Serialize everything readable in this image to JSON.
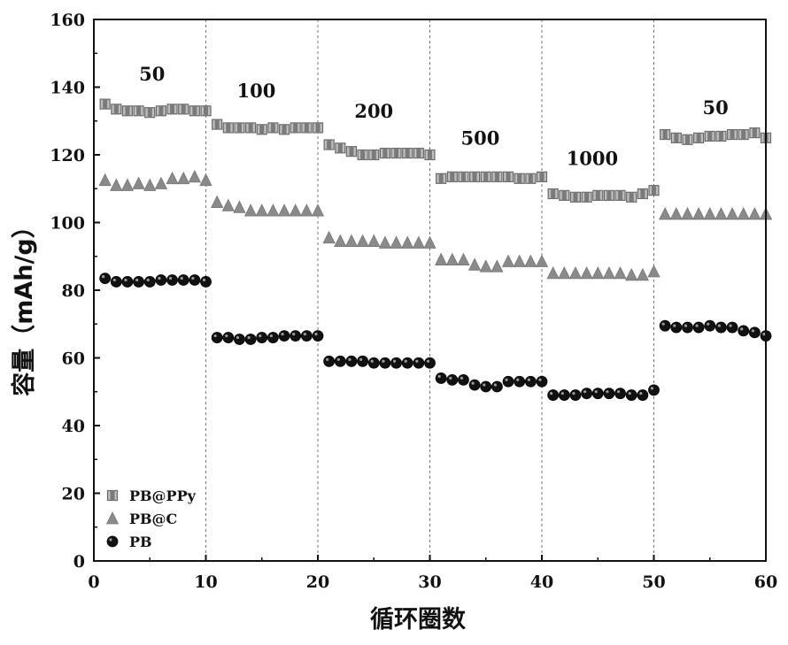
{
  "chart_data": {
    "type": "scatter",
    "xlabel": "循环圈数",
    "ylabel": "容量（mAh/g）",
    "xlim": [
      0,
      60
    ],
    "ylim": [
      0,
      160
    ],
    "xticks": [
      "0",
      "10",
      "20",
      "30",
      "40",
      "50",
      "60"
    ],
    "yticks": [
      "0",
      "20",
      "40",
      "60",
      "80",
      "100",
      "120",
      "140",
      "160"
    ],
    "segment_boundaries": [
      10,
      20,
      30,
      40,
      50
    ],
    "rate_labels": [
      {
        "text": "50",
        "x": 5.2,
        "y": 142
      },
      {
        "text": "100",
        "x": 14.5,
        "y": 137
      },
      {
        "text": "200",
        "x": 25,
        "y": 131
      },
      {
        "text": "500",
        "x": 34.5,
        "y": 123
      },
      {
        "text": "1000",
        "x": 44.5,
        "y": 117
      },
      {
        "text": "50",
        "x": 55.5,
        "y": 132
      }
    ],
    "legend_position": "bottom-left",
    "series": [
      {
        "name": "PB@PPy",
        "marker": "square",
        "color": "#8a8a8a",
        "x": [
          1,
          2,
          3,
          4,
          5,
          6,
          7,
          8,
          9,
          10,
          11,
          12,
          13,
          14,
          15,
          16,
          17,
          18,
          19,
          20,
          21,
          22,
          23,
          24,
          25,
          26,
          27,
          28,
          29,
          30,
          31,
          32,
          33,
          34,
          35,
          36,
          37,
          38,
          39,
          40,
          41,
          42,
          43,
          44,
          45,
          46,
          47,
          48,
          49,
          50,
          51,
          52,
          53,
          54,
          55,
          56,
          57,
          58,
          59,
          60
        ],
        "values": [
          135,
          133.5,
          133,
          133,
          132.5,
          133,
          133.5,
          133.5,
          133,
          133,
          129,
          128,
          128,
          128,
          127.5,
          128,
          127.5,
          128,
          128,
          128,
          123,
          122,
          121,
          120,
          120,
          120.5,
          120.5,
          120.5,
          120.5,
          120,
          113,
          113.5,
          113.5,
          113.5,
          113.5,
          113.5,
          113.5,
          113,
          113,
          113.5,
          108.5,
          108,
          107.5,
          107.5,
          108,
          108,
          108,
          107.5,
          108.5,
          109.5,
          126,
          125,
          124.5,
          125,
          125.5,
          125.5,
          126,
          126,
          126.5,
          125
        ]
      },
      {
        "name": "PB@C",
        "marker": "triangle",
        "color": "#8a8a8a",
        "x": [
          1,
          2,
          3,
          4,
          5,
          6,
          7,
          8,
          9,
          10,
          11,
          12,
          13,
          14,
          15,
          16,
          17,
          18,
          19,
          20,
          21,
          22,
          23,
          24,
          25,
          26,
          27,
          28,
          29,
          30,
          31,
          32,
          33,
          34,
          35,
          36,
          37,
          38,
          39,
          40,
          41,
          42,
          43,
          44,
          45,
          46,
          47,
          48,
          49,
          50,
          51,
          52,
          53,
          54,
          55,
          56,
          57,
          58,
          59,
          60
        ],
        "values": [
          112.5,
          111,
          111,
          111.5,
          111,
          111.5,
          113,
          113,
          113.5,
          112.5,
          106,
          105,
          104.5,
          103.5,
          103.5,
          103.5,
          103.5,
          103.5,
          103.5,
          103.5,
          95.5,
          94.5,
          94.5,
          94.5,
          94.5,
          94,
          94,
          94,
          94,
          94,
          89,
          89,
          89,
          87.5,
          87,
          87,
          88.5,
          88.5,
          88.5,
          88.5,
          85,
          85,
          85,
          85,
          85,
          85,
          85,
          84.5,
          84.5,
          85.5,
          102.5,
          102.5,
          102.5,
          102.5,
          102.5,
          102.5,
          102.5,
          102.5,
          102.5,
          102.5
        ]
      },
      {
        "name": "PB",
        "marker": "circle",
        "color": "#111111",
        "x": [
          1,
          2,
          3,
          4,
          5,
          6,
          7,
          8,
          9,
          10,
          11,
          12,
          13,
          14,
          15,
          16,
          17,
          18,
          19,
          20,
          21,
          22,
          23,
          24,
          25,
          26,
          27,
          28,
          29,
          30,
          31,
          32,
          33,
          34,
          35,
          36,
          37,
          38,
          39,
          40,
          41,
          42,
          43,
          44,
          45,
          46,
          47,
          48,
          49,
          50,
          51,
          52,
          53,
          54,
          55,
          56,
          57,
          58,
          59,
          60
        ],
        "values": [
          83.5,
          82.5,
          82.5,
          82.5,
          82.5,
          83,
          83,
          83,
          83,
          82.5,
          66,
          66,
          65.5,
          65.5,
          66,
          66,
          66.5,
          66.5,
          66.5,
          66.5,
          59,
          59,
          59,
          59,
          58.5,
          58.5,
          58.5,
          58.5,
          58.5,
          58.5,
          54,
          53.5,
          53.5,
          52,
          51.5,
          51.5,
          53,
          53,
          53,
          53,
          49,
          49,
          49,
          49.5,
          49.5,
          49.5,
          49.5,
          49,
          49,
          50.5,
          69.5,
          69,
          69,
          69,
          69.5,
          69,
          69,
          68,
          67.5,
          66.5
        ]
      }
    ]
  }
}
